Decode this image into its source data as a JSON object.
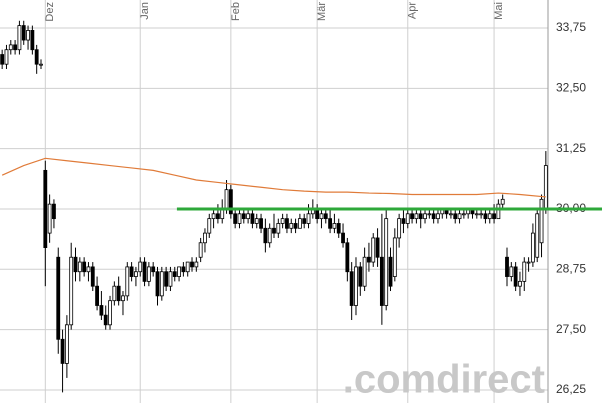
{
  "chart_data": {
    "type": "candlestick",
    "x": [
      0,
      1,
      2,
      3,
      4,
      5,
      6,
      7,
      8,
      9,
      10,
      11,
      12,
      13,
      14,
      15,
      16,
      17,
      18,
      19,
      20,
      21,
      22,
      23,
      24,
      25,
      26,
      27,
      28,
      29,
      30,
      31,
      32,
      33,
      34,
      35,
      36,
      37,
      38,
      39,
      40,
      41,
      42,
      43,
      44,
      45,
      46,
      47,
      48,
      49,
      50,
      51,
      52,
      53,
      54,
      55,
      56,
      57,
      58,
      59,
      60,
      61,
      62,
      63,
      64,
      65,
      66,
      67,
      68,
      69,
      70,
      71,
      72,
      73,
      74,
      75,
      76,
      77,
      78,
      79,
      80,
      81,
      82,
      83,
      84,
      85,
      86,
      87,
      88,
      89,
      90,
      91,
      92,
      93,
      94,
      95,
      96,
      97,
      98,
      99,
      100,
      101,
      102,
      103,
      104,
      105,
      106,
      107,
      108,
      109,
      110,
      111,
      112,
      113,
      114,
      115,
      116,
      117,
      118,
      119,
      120,
      121,
      122,
      123,
      124,
      125,
      126
    ],
    "open": [
      33.2,
      33.0,
      33.3,
      33.4,
      33.3,
      33.8,
      33.5,
      33.7,
      33.3,
      33.0,
      30.8,
      29.5,
      30.1,
      29.0,
      27.3,
      26.8,
      27.6,
      29.0,
      28.7,
      28.9,
      28.7,
      28.8,
      28.4,
      28.0,
      27.8,
      27.6,
      28.1,
      28.4,
      28.1,
      28.2,
      28.8,
      28.6,
      28.7,
      28.9,
      28.5,
      28.8,
      28.7,
      28.2,
      28.7,
      28.4,
      28.7,
      28.6,
      28.8,
      28.7,
      28.9,
      28.8,
      29.0,
      29.3,
      29.5,
      29.8,
      29.9,
      29.8,
      30.0,
      30.4,
      29.9,
      29.7,
      29.9,
      29.8,
      29.9,
      29.7,
      29.8,
      29.6,
      29.3,
      29.6,
      29.5,
      29.7,
      29.8,
      29.6,
      29.7,
      29.6,
      29.8,
      29.7,
      29.9,
      30.0,
      29.8,
      29.9,
      29.8,
      29.6,
      29.7,
      29.5,
      29.3,
      28.7,
      28.0,
      28.8,
      28.4,
      29.0,
      28.9,
      29.4,
      29.0,
      28.0,
      29.0,
      28.6,
      29.4,
      29.8,
      29.7,
      29.9,
      29.8,
      29.9,
      29.8,
      29.9,
      29.9,
      29.8,
      29.9,
      30.0,
      29.9,
      29.9,
      29.8,
      29.9,
      29.9,
      30.0,
      29.9,
      29.9,
      29.9,
      29.8,
      29.9,
      29.8,
      30.1,
      29.0,
      28.6,
      28.8,
      28.4,
      28.5,
      28.9,
      28.9,
      29.0,
      29.3,
      30.0
    ],
    "high": [
      33.3,
      33.4,
      33.5,
      33.5,
      33.9,
      33.9,
      33.8,
      33.8,
      33.4,
      33.1,
      31.0,
      30.3,
      30.2,
      29.2,
      27.5,
      27.8,
      29.3,
      29.2,
      29.0,
      29.0,
      28.9,
      28.9,
      28.6,
      28.3,
      28.0,
      28.2,
      28.5,
      28.6,
      28.3,
      28.9,
      28.9,
      28.8,
      29.0,
      29.0,
      28.9,
      28.9,
      28.8,
      28.8,
      28.8,
      28.8,
      28.8,
      28.8,
      28.9,
      28.9,
      29.0,
      29.0,
      29.4,
      29.6,
      29.9,
      30.0,
      30.1,
      30.2,
      30.6,
      30.5,
      30.0,
      30.0,
      30.0,
      30.0,
      30.0,
      29.9,
      29.9,
      29.8,
      29.7,
      29.9,
      29.8,
      29.9,
      29.9,
      29.8,
      29.8,
      29.9,
      29.9,
      30.1,
      30.2,
      30.1,
      30.0,
      30.0,
      30.0,
      29.9,
      29.8,
      29.7,
      29.4,
      28.9,
      29.0,
      28.9,
      29.2,
      29.3,
      29.5,
      29.6,
      29.9,
      30.0,
      29.2,
      29.6,
      29.9,
      30.0,
      30.0,
      30.0,
      30.0,
      30.0,
      30.0,
      30.0,
      30.0,
      30.0,
      30.0,
      30.0,
      30.0,
      30.0,
      30.0,
      30.0,
      30.0,
      30.0,
      30.0,
      30.0,
      30.0,
      30.0,
      30.1,
      30.2,
      30.3,
      29.2,
      28.9,
      28.9,
      28.7,
      29.0,
      29.0,
      29.7,
      30.0,
      30.3,
      31.2
    ],
    "low": [
      32.9,
      32.9,
      33.2,
      33.2,
      33.2,
      33.4,
      33.3,
      33.2,
      32.8,
      32.9,
      28.4,
      29.3,
      29.6,
      27.0,
      26.2,
      26.5,
      27.5,
      28.5,
      28.5,
      28.6,
      28.5,
      28.3,
      27.9,
      27.7,
      27.5,
      27.5,
      28.0,
      28.0,
      27.8,
      28.1,
      28.5,
      28.4,
      28.6,
      28.4,
      28.4,
      28.6,
      28.0,
      28.1,
      28.3,
      28.3,
      28.5,
      28.5,
      28.6,
      28.6,
      28.7,
      28.7,
      28.9,
      29.1,
      29.4,
      29.6,
      29.7,
      29.7,
      29.9,
      29.8,
      29.6,
      29.6,
      29.7,
      29.7,
      29.6,
      29.6,
      29.5,
      29.1,
      29.2,
      29.4,
      29.4,
      29.6,
      29.5,
      29.5,
      29.5,
      29.6,
      29.6,
      29.6,
      29.8,
      29.7,
      29.6,
      29.7,
      29.5,
      29.5,
      29.4,
      29.2,
      28.5,
      27.7,
      27.8,
      28.2,
      28.3,
      28.7,
      28.8,
      28.8,
      27.6,
      27.9,
      28.3,
      28.5,
      29.2,
      29.5,
      29.6,
      29.7,
      29.7,
      29.6,
      29.7,
      29.8,
      29.7,
      29.7,
      29.8,
      29.8,
      29.8,
      29.7,
      29.7,
      29.8,
      29.8,
      29.8,
      29.8,
      29.8,
      29.7,
      29.7,
      29.7,
      29.8,
      30.0,
      28.4,
      28.5,
      28.3,
      28.2,
      28.3,
      28.7,
      28.8,
      28.9,
      29.0,
      29.9
    ],
    "close": [
      33.0,
      33.3,
      33.4,
      33.3,
      33.8,
      33.5,
      33.7,
      33.3,
      33.0,
      33.0,
      29.2,
      30.1,
      29.8,
      27.3,
      26.8,
      27.6,
      29.0,
      28.7,
      28.9,
      28.7,
      28.8,
      28.4,
      28.0,
      27.8,
      27.6,
      28.1,
      28.4,
      28.1,
      28.2,
      28.8,
      28.6,
      28.7,
      28.9,
      28.5,
      28.8,
      28.7,
      28.2,
      28.7,
      28.4,
      28.7,
      28.6,
      28.8,
      28.7,
      28.9,
      28.8,
      28.9,
      29.3,
      29.5,
      29.8,
      29.9,
      29.8,
      30.0,
      30.4,
      29.9,
      29.7,
      29.9,
      29.8,
      29.9,
      29.7,
      29.8,
      29.6,
      29.3,
      29.6,
      29.5,
      29.7,
      29.8,
      29.6,
      29.7,
      29.6,
      29.8,
      29.7,
      29.9,
      30.0,
      29.8,
      29.9,
      29.8,
      29.6,
      29.7,
      29.5,
      29.3,
      28.7,
      28.0,
      28.8,
      28.4,
      29.0,
      28.9,
      29.4,
      29.0,
      28.0,
      29.8,
      28.4,
      29.4,
      29.8,
      29.7,
      29.9,
      29.8,
      29.9,
      29.8,
      29.9,
      29.9,
      29.8,
      29.9,
      30.0,
      29.9,
      29.9,
      29.8,
      29.9,
      29.9,
      30.0,
      29.9,
      29.9,
      29.9,
      29.8,
      29.9,
      29.8,
      30.1,
      30.2,
      28.6,
      28.8,
      28.4,
      28.5,
      28.9,
      28.9,
      29.5,
      29.9,
      30.2,
      30.9
    ],
    "candle_color": "#000000",
    "moving_average": {
      "color": "#e07b39",
      "x": [
        0,
        5,
        10,
        15,
        20,
        25,
        30,
        35,
        40,
        45,
        50,
        55,
        60,
        65,
        70,
        75,
        80,
        85,
        90,
        95,
        100,
        105,
        110,
        115,
        120,
        126
      ],
      "values": [
        30.7,
        30.9,
        31.05,
        31.0,
        30.95,
        30.9,
        30.85,
        30.8,
        30.7,
        30.6,
        30.55,
        30.5,
        30.45,
        30.4,
        30.37,
        30.35,
        30.35,
        30.33,
        30.32,
        30.3,
        30.3,
        30.3,
        30.3,
        30.33,
        30.3,
        30.25
      ]
    },
    "support_line": {
      "value": 30.0,
      "x_start": 40.5,
      "color": "#2ea83a"
    },
    "xlim": [
      -0.5,
      126.5
    ],
    "xticks": [
      {
        "value": 10,
        "label": "Dez"
      },
      {
        "value": 32,
        "label": "Jan"
      },
      {
        "value": 53,
        "label": "Feb"
      },
      {
        "value": 73,
        "label": "Mär"
      },
      {
        "value": 94,
        "label": "Apr"
      },
      {
        "value": 114,
        "label": "Mai"
      }
    ],
    "ylim": [
      25.98,
      34.33
    ],
    "yticks": [
      {
        "value": 26.25,
        "label": "26,25"
      },
      {
        "value": 27.5,
        "label": "27,50"
      },
      {
        "value": 28.75,
        "label": "28,75"
      },
      {
        "value": 30,
        "label": "30,00"
      },
      {
        "value": 31.25,
        "label": "31,25"
      },
      {
        "value": 32.5,
        "label": "32,50"
      },
      {
        "value": 33.75,
        "label": "33,75"
      }
    ],
    "grid": true,
    "watermark": ".comdirect"
  }
}
